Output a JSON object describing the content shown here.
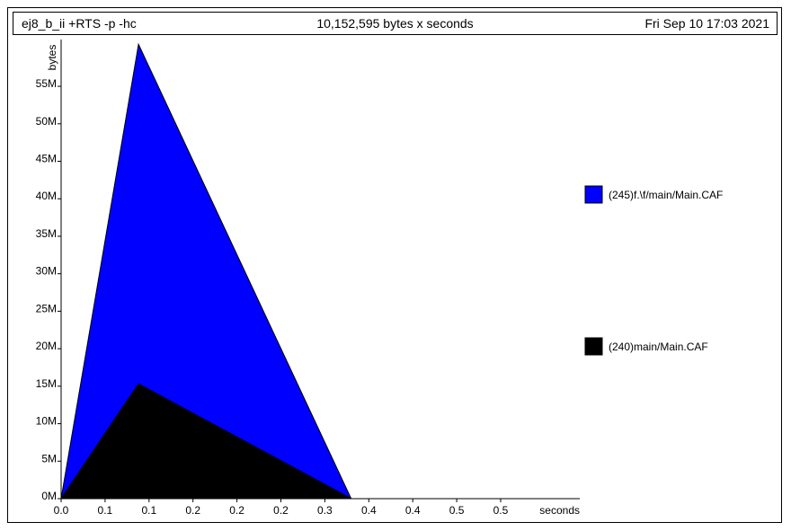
{
  "header": {
    "title": "ej8_b_ii +RTS -p -hc",
    "total": "10,152,595 bytes x seconds",
    "date": "Fri Sep 10 17:03 2021"
  },
  "chart_data": {
    "type": "area",
    "stacked": true,
    "ylabel": "bytes",
    "xlabel": "seconds",
    "xlim": [
      0.0,
      0.59
    ],
    "ylim": [
      0,
      61000000
    ],
    "y_ticks": [
      0,
      5000000,
      10000000,
      15000000,
      20000000,
      25000000,
      30000000,
      35000000,
      40000000,
      45000000,
      50000000,
      55000000
    ],
    "y_tick_labels": [
      "0M",
      "5M",
      "10M",
      "15M",
      "20M",
      "25M",
      "30M",
      "35M",
      "40M",
      "45M",
      "50M",
      "55M"
    ],
    "x_ticks": [
      0.0,
      0.05,
      0.1,
      0.15,
      0.2,
      0.25,
      0.3,
      0.35,
      0.4,
      0.45,
      0.5
    ],
    "x_tick_labels": [
      "0.0",
      "0.1",
      "0.1",
      "0.2",
      "0.2",
      "0.2",
      "0.3",
      "0.4",
      "0.4",
      "0.5",
      "0.5"
    ],
    "x": [
      0.0,
      0.088,
      0.33,
      0.59
    ],
    "series": [
      {
        "name": "(240)main/Main.CAF",
        "color": "#000000",
        "values": [
          0,
          15300000,
          0,
          0
        ]
      },
      {
        "name": "(245)f.\\f/main/Main.CAF",
        "color": "#0000ff",
        "values": [
          0,
          45300000,
          0,
          0
        ]
      }
    ],
    "legend": [
      {
        "label": "(245)f.\\f/main/Main.CAF",
        "color": "#0000ff"
      },
      {
        "label": "(240)main/Main.CAF",
        "color": "#000000"
      }
    ],
    "legend_position": "right",
    "grid": false
  }
}
